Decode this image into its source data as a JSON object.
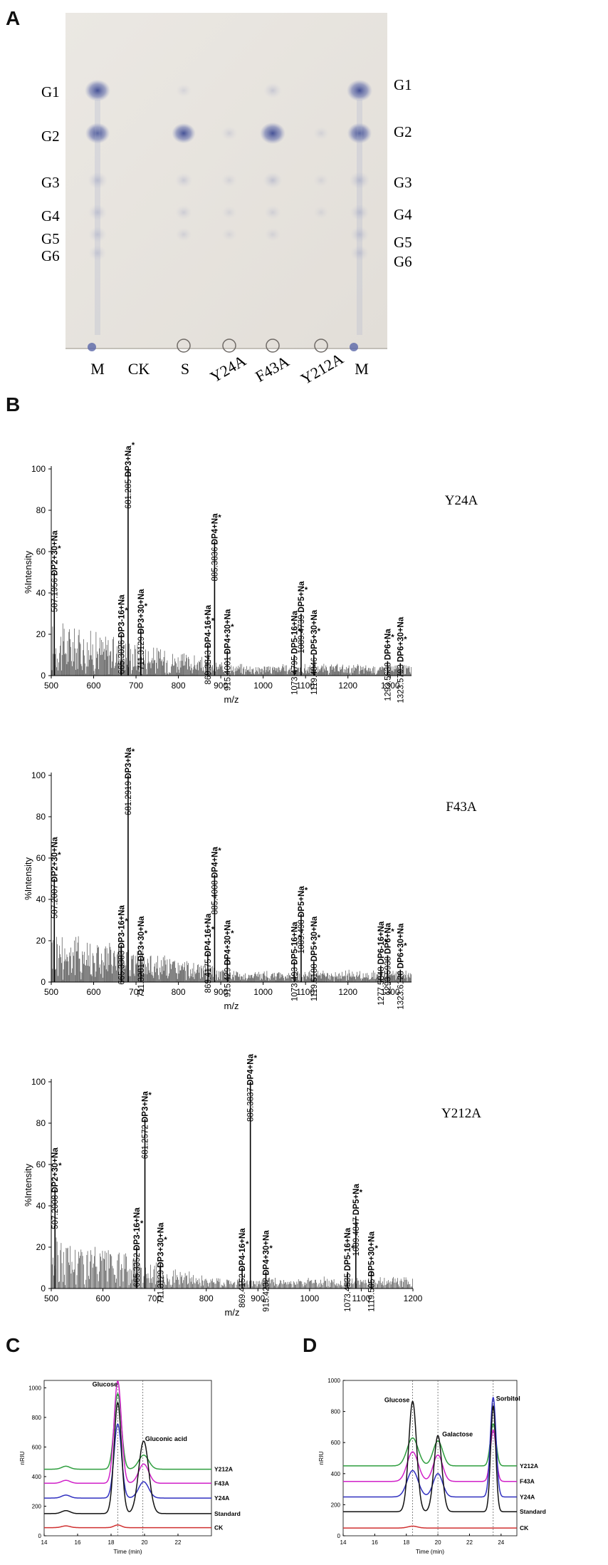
{
  "panels": {
    "a": "A",
    "b": "B",
    "c": "C",
    "d": "D"
  },
  "tlc": {
    "left_labels": [
      "G1",
      "G2",
      "G3",
      "G4",
      "G5",
      "G6"
    ],
    "right_labels": [
      "G1",
      "G2",
      "G3",
      "G4",
      "G5",
      "G6"
    ],
    "lanes": [
      "M",
      "CK",
      "S",
      "Y24A",
      "F43A",
      "Y212A",
      "M"
    ]
  },
  "chart_data": [
    {
      "type": "bar",
      "title": "Y24A",
      "xlabel": "m/z",
      "ylabel": "%Intensity",
      "xlim": [
        500,
        1350
      ],
      "ylim": [
        0,
        100
      ],
      "xticks": [
        500,
        600,
        700,
        800,
        900,
        1000,
        1100,
        1200,
        1300
      ],
      "yticks": [
        0,
        20,
        40,
        60,
        80,
        100
      ],
      "peaks": [
        {
          "mz": 507.1956,
          "y": 50,
          "label": "507.1956 DP2+30+Na"
        },
        {
          "mz": 665.3026,
          "y": 20,
          "label": "665.3026 DP3-16+Na"
        },
        {
          "mz": 681.285,
          "y": 100,
          "label": "681.285 DP3+Na"
        },
        {
          "mz": 711.3129,
          "y": 22,
          "label": "711.3129 DP3+30+Na"
        },
        {
          "mz": 869.3843,
          "y": 15,
          "label": "869.3843 DP4-16+Na"
        },
        {
          "mz": 885.3836,
          "y": 65,
          "label": "885.3836 DP4+Na"
        },
        {
          "mz": 915.4001,
          "y": 12,
          "label": "915.4001 DP4+30+Na"
        },
        {
          "mz": 1073.4795,
          "y": 10,
          "label": "1073.4795 DP5-16+Na"
        },
        {
          "mz": 1089.4739,
          "y": 30,
          "label": "1089.4739 DP5+Na"
        },
        {
          "mz": 1119.4846,
          "y": 10,
          "label": "1119.4846 DP5+30+Na"
        },
        {
          "mz": 1293.5638,
          "y": 7,
          "label": "1293.5638 DP6+Na"
        },
        {
          "mz": 1323.5793,
          "y": 6,
          "label": "1323.5793 DP6+30+Na"
        }
      ]
    },
    {
      "type": "bar",
      "title": "F43A",
      "xlabel": "m/z",
      "ylabel": "%Intensity",
      "xlim": [
        500,
        1350
      ],
      "ylim": [
        0,
        100
      ],
      "xticks": [
        500,
        600,
        700,
        800,
        900,
        1000,
        1100,
        1200,
        1300
      ],
      "yticks": [
        0,
        20,
        40,
        60,
        80,
        100
      ],
      "peaks": [
        {
          "mz": 507.2007,
          "y": 50,
          "label": "507.2007 DP2+30+Na"
        },
        {
          "mz": 665.3383,
          "y": 18,
          "label": "665.3383 DP3-16+Na"
        },
        {
          "mz": 681.2919,
          "y": 100,
          "label": "681.2919 DP3+Na"
        },
        {
          "mz": 711.3281,
          "y": 12,
          "label": "711.3281 DP3+30+Na"
        },
        {
          "mz": 869.4175,
          "y": 14,
          "label": "869.4175 DP4-16+Na"
        },
        {
          "mz": 885.4008,
          "y": 52,
          "label": "885.4008 DP4+Na"
        },
        {
          "mz": 915.429,
          "y": 12,
          "label": "915.429 DP4+30+Na"
        },
        {
          "mz": 1073.493,
          "y": 10,
          "label": "1073.493 DP5-16+Na"
        },
        {
          "mz": 1089.498,
          "y": 33,
          "label": "1089.498 DP5+Na"
        },
        {
          "mz": 1119.5188,
          "y": 10,
          "label": "1119.5188 DP5+30+Na"
        },
        {
          "mz": 1277.5848,
          "y": 8,
          "label": "1277.5848 DP6-16+Na"
        },
        {
          "mz": 1293.5938,
          "y": 13,
          "label": "1293.5938 DP6+Na"
        },
        {
          "mz": 1323.6128,
          "y": 6,
          "label": "1323.6128 DP6+30+Na"
        }
      ]
    },
    {
      "type": "bar",
      "title": "Y212A",
      "xlabel": "m/z",
      "ylabel": "%Intensity",
      "xlim": [
        500,
        1200
      ],
      "ylim": [
        0,
        100
      ],
      "xticks": [
        500,
        600,
        700,
        800,
        900,
        1000,
        1100,
        1200
      ],
      "yticks": [
        0,
        20,
        40,
        60,
        80,
        100
      ],
      "peaks": [
        {
          "mz": 507.2008,
          "y": 48,
          "label": "507.2008 DP2+30+Na"
        },
        {
          "mz": 665.3352,
          "y": 20,
          "label": "665.3352 DP3-16+Na"
        },
        {
          "mz": 681.2572,
          "y": 82,
          "label": "681.2572 DP3+Na"
        },
        {
          "mz": 711.3129,
          "y": 12,
          "label": "711.3129 DP3+30+Na"
        },
        {
          "mz": 869.4152,
          "y": 10,
          "label": "869.4152 DP4-16+Na"
        },
        {
          "mz": 885.3837,
          "y": 100,
          "label": "885.3837 DP4+Na"
        },
        {
          "mz": 915.4232,
          "y": 8,
          "label": "915.4232 DP4+30+Na"
        },
        {
          "mz": 1073.4535,
          "y": 8,
          "label": "1073.4535 DP5-16+Na"
        },
        {
          "mz": 1089.4847,
          "y": 35,
          "label": "1089.4847 DP5+Na"
        },
        {
          "mz": 1119.505,
          "y": 8,
          "label": "1119.505 DP5+30+Na"
        }
      ]
    },
    {
      "type": "line",
      "xlabel": "Time (min)",
      "ylabel": "nRIU",
      "xlim": [
        14,
        24
      ],
      "ylim": [
        0,
        1050
      ],
      "xticks": [
        14,
        16,
        18,
        20,
        22
      ],
      "yticks": [
        0,
        200,
        400,
        600,
        800,
        1000
      ],
      "vlines": [
        18.4,
        19.9
      ],
      "annotations": [
        "Glucose",
        "Gluconic acid"
      ],
      "series": [
        {
          "name": "Y212A",
          "color": "#2e9e3e",
          "baseline": 450,
          "peaks": [
            [
              15.3,
              20,
              0.25
            ],
            [
              18.4,
              510,
              0.22
            ],
            [
              19.95,
              95,
              0.3
            ]
          ]
        },
        {
          "name": "F43A",
          "color": "#d020c8",
          "baseline": 355,
          "peaks": [
            [
              15.3,
              20,
              0.25
            ],
            [
              18.4,
              690,
              0.22
            ],
            [
              19.95,
              130,
              0.3
            ]
          ]
        },
        {
          "name": "Y24A",
          "color": "#3030c0",
          "baseline": 255,
          "peaks": [
            [
              15.3,
              20,
              0.25
            ],
            [
              18.4,
              500,
              0.22
            ],
            [
              19.95,
              110,
              0.3
            ]
          ]
        },
        {
          "name": "Standard",
          "color": "#111111",
          "baseline": 150,
          "peaks": [
            [
              15.3,
              20,
              0.25
            ],
            [
              18.4,
              750,
              0.22
            ],
            [
              19.95,
              490,
              0.3
            ]
          ]
        },
        {
          "name": "CK",
          "color": "#d03030",
          "baseline": 55,
          "peaks": [
            [
              15.3,
              12,
              0.25
            ],
            [
              18.4,
              18,
              0.22
            ]
          ]
        }
      ]
    },
    {
      "type": "line",
      "xlabel": "Time (min)",
      "ylabel": "nRIU",
      "xlim": [
        14,
        25
      ],
      "ylim": [
        0,
        1000
      ],
      "xticks": [
        14,
        16,
        18,
        20,
        22,
        24
      ],
      "yticks": [
        0,
        200,
        400,
        600,
        800,
        1000
      ],
      "vlines": [
        18.4,
        20,
        23.5
      ],
      "annotations": [
        "Glucose",
        "Galactose",
        "Sorbitol"
      ],
      "series": [
        {
          "name": "Y212A",
          "color": "#2e9e3e",
          "baseline": 450,
          "peaks": [
            [
              18.4,
              180,
              0.35
            ],
            [
              20,
              160,
              0.3
            ],
            [
              23.5,
              270,
              0.18
            ]
          ]
        },
        {
          "name": "F43A",
          "color": "#d020c8",
          "baseline": 350,
          "peaks": [
            [
              18.4,
              190,
              0.35
            ],
            [
              20,
              170,
              0.3
            ],
            [
              23.5,
              330,
              0.18
            ]
          ]
        },
        {
          "name": "Y24A",
          "color": "#3030c0",
          "baseline": 250,
          "peaks": [
            [
              18.4,
              170,
              0.35
            ],
            [
              20,
              150,
              0.3
            ],
            [
              23.5,
              640,
              0.18
            ]
          ]
        },
        {
          "name": "Standard",
          "color": "#111111",
          "baseline": 155,
          "peaks": [
            [
              18.4,
              710,
              0.25
            ],
            [
              20,
              490,
              0.25
            ],
            [
              23.5,
              680,
              0.16
            ]
          ]
        },
        {
          "name": "CK",
          "color": "#d03030",
          "baseline": 50,
          "peaks": [
            [
              18.4,
              12,
              0.3
            ]
          ]
        }
      ]
    }
  ]
}
